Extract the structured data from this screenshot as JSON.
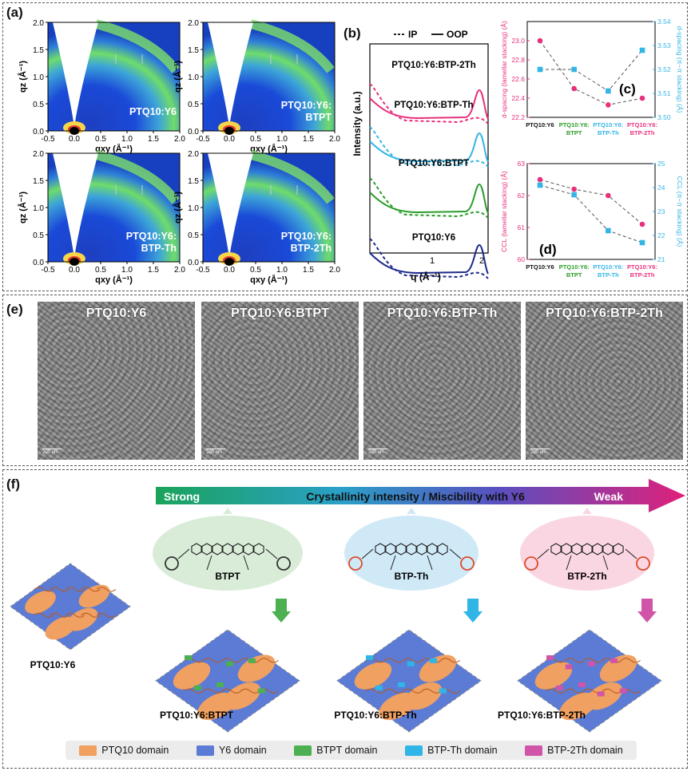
{
  "panels": {
    "a": "(a)",
    "b": "(b)",
    "c": "(c)",
    "d": "(d)",
    "e": "(e)",
    "f": "(f)"
  },
  "giwaxs": {
    "labels": [
      "PTQ10:Y6",
      "PTQ10:Y6:\nBTPT",
      "PTQ10:Y6:\nBTP-Th",
      "PTQ10:Y6:\nBTP-2Th"
    ],
    "ylabel": "qz (Å⁻¹)",
    "xlabel": "qxy (Å⁻¹)",
    "yticks": [
      "0.0",
      "0.5",
      "1.0",
      "1.5",
      "2.0"
    ],
    "xticks": [
      "-0.5",
      "0.0",
      "0.5",
      "1.0",
      "1.5",
      "2.0"
    ]
  },
  "chart_data": [
    {
      "type": "line",
      "panel": "b",
      "legend": [
        "IP",
        "OOP"
      ],
      "ylabel": "Intensity (a.u.)",
      "xlabel": "q (Å⁻¹)",
      "xticks": [
        "1",
        "2"
      ],
      "series": [
        {
          "name": "PTQ10:Y6:BTP-2Th",
          "color": "#e8307c"
        },
        {
          "name": "PTQ10:Y6:BTP-Th",
          "color": "#33b5e5"
        },
        {
          "name": "PTQ10:Y6:BTPT",
          "color": "#2a9d2a"
        },
        {
          "name": "PTQ10:Y6",
          "color": "#1c2a8a"
        }
      ]
    },
    {
      "type": "line",
      "panel": "c",
      "categories": [
        "PTQ10:Y6",
        "PTQ10:Y6:\nBTPT",
        "PTQ10:Y6:\nBTP-Th",
        "PTQ10:Y6:\nBTP-2Th"
      ],
      "category_colors": [
        "#111111",
        "#2a9d2a",
        "#33b5e5",
        "#e8307c"
      ],
      "ylabel": "d-spacing (lamellar stacking) (Å)",
      "y2label": "d-spacing (π−π stacking) (Å)",
      "ylim": [
        22.2,
        23.2
      ],
      "y2lim": [
        3.5,
        3.54
      ],
      "yticks": [
        "22.2",
        "22.4",
        "22.6",
        "22.8",
        "23.0"
      ],
      "y2ticks": [
        "3.50",
        "3.51",
        "3.52",
        "3.53",
        "3.54"
      ],
      "series": [
        {
          "name": "lamellar",
          "axis": "left",
          "color": "#e8307c",
          "values": [
            23.0,
            22.5,
            22.33,
            22.4
          ]
        },
        {
          "name": "pi-pi",
          "axis": "right",
          "color": "#33b5e5",
          "values": [
            3.52,
            3.52,
            3.511,
            3.528
          ]
        }
      ]
    },
    {
      "type": "line",
      "panel": "d",
      "categories": [
        "PTQ10:Y6",
        "PTQ10:Y6:\nBTPT",
        "PTQ10:Y6:\nBTP-Th",
        "PTQ10:Y6:\nBTP-2Th"
      ],
      "category_colors": [
        "#111111",
        "#2a9d2a",
        "#33b5e5",
        "#e8307c"
      ],
      "ylabel": "CCL (lamellar stacking) (Å)",
      "y2label": "CCL (π−π stacking) (Å)",
      "ylim": [
        60,
        63
      ],
      "y2lim": [
        21,
        25
      ],
      "yticks": [
        "60",
        "61",
        "62",
        "63"
      ],
      "y2ticks": [
        "21",
        "22",
        "23",
        "24",
        "25"
      ],
      "series": [
        {
          "name": "lamellar",
          "axis": "left",
          "color": "#e8307c",
          "values": [
            62.5,
            62.2,
            62.0,
            61.1
          ]
        },
        {
          "name": "pi-pi",
          "axis": "right",
          "color": "#33b5e5",
          "values": [
            24.1,
            23.7,
            22.2,
            21.7
          ]
        }
      ]
    }
  ],
  "tem": {
    "labels": [
      "PTQ10:Y6",
      "PTQ10:Y6:BTPT",
      "PTQ10:Y6:BTP-Th",
      "PTQ10:Y6:BTP-2Th"
    ],
    "scale": "200 nm"
  },
  "schematic": {
    "arrow_left": "Strong",
    "arrow_center": "Crystallinity intensity / Miscibility with Y6",
    "arrow_right": "Weak",
    "bubbles": [
      {
        "name": "BTPT",
        "color": "#d8ecd8"
      },
      {
        "name": "BTP-Th",
        "color": "#cfe9f7"
      },
      {
        "name": "BTP-2Th",
        "color": "#fad6e2"
      }
    ],
    "films": [
      "PTQ10:Y6",
      "PTQ10:Y6:BTPT",
      "PTQ10:Y6:BTP-Th",
      "PTQ10:Y6:BTP-2Th"
    ],
    "legend": [
      {
        "label": "PTQ10 domain",
        "color": "#f0a060"
      },
      {
        "label": "Y6 domain",
        "color": "#5b7bd5"
      },
      {
        "label": "BTPT domain",
        "color": "#4caf50"
      },
      {
        "label": "BTP-Th domain",
        "color": "#2fb5e6"
      },
      {
        "label": "BTP-2Th domain",
        "color": "#d055a8"
      }
    ]
  }
}
